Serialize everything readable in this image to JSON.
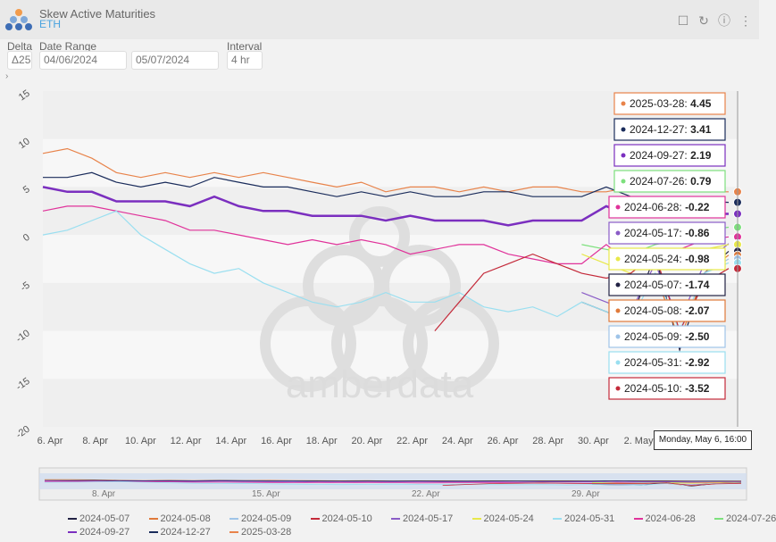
{
  "header": {
    "title": "Skew Active Maturities",
    "subtitle": "ETH"
  },
  "controls": {
    "delta_label": "Delta",
    "delta_value": "Δ25",
    "range_label": "Date Range",
    "start_date": "04/06/2024",
    "end_date": "05/07/2024",
    "interval_label": "Interval",
    "interval_value": "4 hr"
  },
  "watermark": "amberdata",
  "tooltip": {
    "time": "Monday, May 6, 16:00"
  },
  "chart_data": {
    "type": "line",
    "ylim": [
      -20,
      15
    ],
    "yticks": [
      "15",
      "10",
      "5",
      "0",
      "-5",
      "-10",
      "-15",
      "-20"
    ],
    "xticks": [
      "6. Apr",
      "8. Apr",
      "10. Apr",
      "12. Apr",
      "14. Apr",
      "16. Apr",
      "18. Apr",
      "20. Apr",
      "22. Apr",
      "24. Apr",
      "26. Apr",
      "28. Apr",
      "30. Apr",
      "2. May"
    ],
    "navigator_ticks": [
      "8. Apr",
      "15. Apr",
      "22. Apr",
      "29. Apr"
    ],
    "series": [
      {
        "name": "2025-03-28",
        "color": "#e8834a",
        "value": "4.45",
        "points": [
          8.5,
          9,
          8,
          6.5,
          6,
          6.5,
          6,
          6.5,
          6,
          6.5,
          6,
          5.5,
          5,
          5.5,
          4.5,
          5,
          5,
          4.5,
          5,
          4.5,
          5,
          5,
          4.5,
          4.5,
          5,
          5,
          4.5,
          4.5,
          4.5
        ]
      },
      {
        "name": "2024-12-27",
        "color": "#1a2c5b",
        "value": "3.41",
        "points": [
          6,
          6,
          6.5,
          5.5,
          5,
          5.5,
          5,
          6,
          5.5,
          5,
          5,
          4.5,
          4,
          4.5,
          4,
          4.5,
          4,
          4,
          4.5,
          4.5,
          4,
          4,
          4,
          5,
          4,
          4,
          3.5,
          3.5,
          3.4
        ]
      },
      {
        "name": "2024-09-27",
        "color": "#7b2fbf",
        "value": "2.19",
        "points": [
          5,
          4.5,
          4.5,
          3.5,
          3.5,
          3.5,
          3,
          4,
          3,
          2.5,
          2.5,
          2,
          2,
          2,
          1.5,
          2,
          1.5,
          1.5,
          1.5,
          1,
          1.5,
          1.5,
          1.5,
          3,
          2,
          2,
          2,
          2.2,
          2.2
        ]
      },
      {
        "name": "2024-07-26",
        "color": "#7de07d",
        "value": "0.79",
        "points": [
          null,
          null,
          null,
          null,
          null,
          null,
          null,
          null,
          null,
          null,
          null,
          null,
          null,
          null,
          null,
          null,
          null,
          null,
          null,
          null,
          null,
          null,
          -1,
          -1.5,
          -2,
          -1,
          -0.5,
          0.5,
          0.8
        ]
      },
      {
        "name": "2024-06-28",
        "color": "#e0329a",
        "value": "-0.22",
        "points": [
          2.5,
          3,
          3,
          2.5,
          2,
          1.5,
          0.5,
          0.5,
          0,
          -0.5,
          -1,
          -0.5,
          -1,
          -0.5,
          -1,
          -2,
          -1.5,
          -1,
          -1,
          -2,
          -2.5,
          -3,
          -3,
          -1,
          -3,
          -2,
          -1.5,
          -0.5,
          -0.2
        ]
      },
      {
        "name": "2024-05-17",
        "color": "#8a5cc7",
        "value": "-0.86",
        "points": [
          null,
          null,
          null,
          null,
          null,
          null,
          null,
          null,
          null,
          null,
          null,
          null,
          null,
          null,
          null,
          null,
          null,
          null,
          null,
          null,
          null,
          null,
          -6,
          -7,
          -8,
          -3,
          -9,
          -3,
          -0.9
        ]
      },
      {
        "name": "2024-05-24",
        "color": "#e8e84a",
        "value": "-0.98",
        "points": [
          null,
          null,
          null,
          null,
          null,
          null,
          null,
          null,
          null,
          null,
          null,
          null,
          null,
          null,
          null,
          null,
          null,
          null,
          null,
          null,
          null,
          null,
          -2,
          -3,
          -4,
          -2,
          -3,
          -1.5,
          -1
        ]
      },
      {
        "name": "2024-05-07",
        "color": "#222244",
        "value": "-1.74",
        "points": [
          null,
          null,
          null,
          null,
          null,
          null,
          null,
          null,
          null,
          null,
          null,
          null,
          null,
          null,
          null,
          null,
          null,
          null,
          null,
          null,
          null,
          null,
          -7,
          -8,
          -9,
          -2,
          -12,
          -4,
          -1.7
        ]
      },
      {
        "name": "2024-05-08",
        "color": "#e07a3a",
        "value": "-2.07",
        "points": [
          null,
          null,
          null,
          null,
          null,
          null,
          null,
          null,
          null,
          null,
          null,
          null,
          null,
          null,
          null,
          null,
          null,
          null,
          null,
          null,
          null,
          null,
          null,
          null,
          null,
          -4,
          -11,
          -4,
          -2.1
        ]
      },
      {
        "name": "2024-05-09",
        "color": "#9fc4e8",
        "value": "-2.50",
        "points": [
          null,
          null,
          null,
          null,
          null,
          null,
          null,
          null,
          null,
          null,
          null,
          null,
          null,
          null,
          null,
          null,
          null,
          null,
          null,
          null,
          null,
          null,
          null,
          null,
          null,
          -4,
          -10,
          -4,
          -2.5
        ]
      },
      {
        "name": "2024-05-31",
        "color": "#9adff0",
        "value": "-2.92",
        "points": [
          0,
          0.5,
          1.5,
          2.5,
          0,
          -1.5,
          -3,
          -4,
          -3.5,
          -5,
          -6,
          -7,
          -7.5,
          -7,
          -6,
          -7,
          -7,
          -6,
          -7.5,
          -8,
          -7.5,
          -8.5,
          -7,
          -8,
          -9,
          -4,
          -10,
          -4,
          -2.9
        ]
      },
      {
        "name": "2024-05-10",
        "color": "#c42a3a",
        "value": "-3.52",
        "points": [
          null,
          null,
          null,
          null,
          null,
          null,
          null,
          null,
          null,
          null,
          null,
          null,
          null,
          null,
          null,
          null,
          -10,
          -7,
          -4,
          -3,
          -2,
          -3,
          -4,
          -4.5,
          -4,
          -2,
          -10,
          -5,
          -3.5
        ]
      }
    ],
    "legend": [
      "2024-05-07",
      "2024-05-08",
      "2024-05-09",
      "2024-05-10",
      "2024-05-17",
      "2024-05-24",
      "2024-05-31",
      "2024-06-28",
      "2024-07-26",
      "2024-09-27",
      "2024-12-27",
      "2025-03-28"
    ]
  }
}
